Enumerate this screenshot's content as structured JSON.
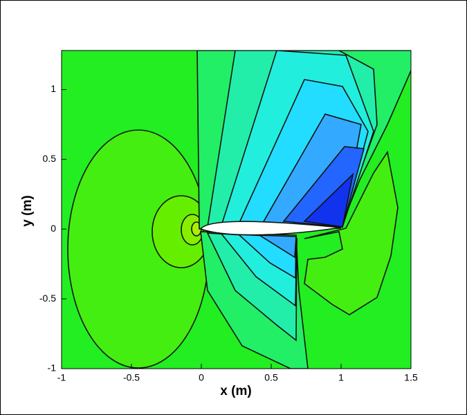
{
  "chart_data": {
    "type": "contour",
    "x_label": "x (m)",
    "y_label": "y (m)",
    "xlim": [
      -1,
      1.5
    ],
    "xticks": [
      -1,
      -0.5,
      0,
      0.5,
      1,
      1.5
    ],
    "ylim": [
      -1,
      1.28
    ],
    "yticks": [
      -1,
      -0.5,
      0,
      0.5,
      1
    ]
  }
}
